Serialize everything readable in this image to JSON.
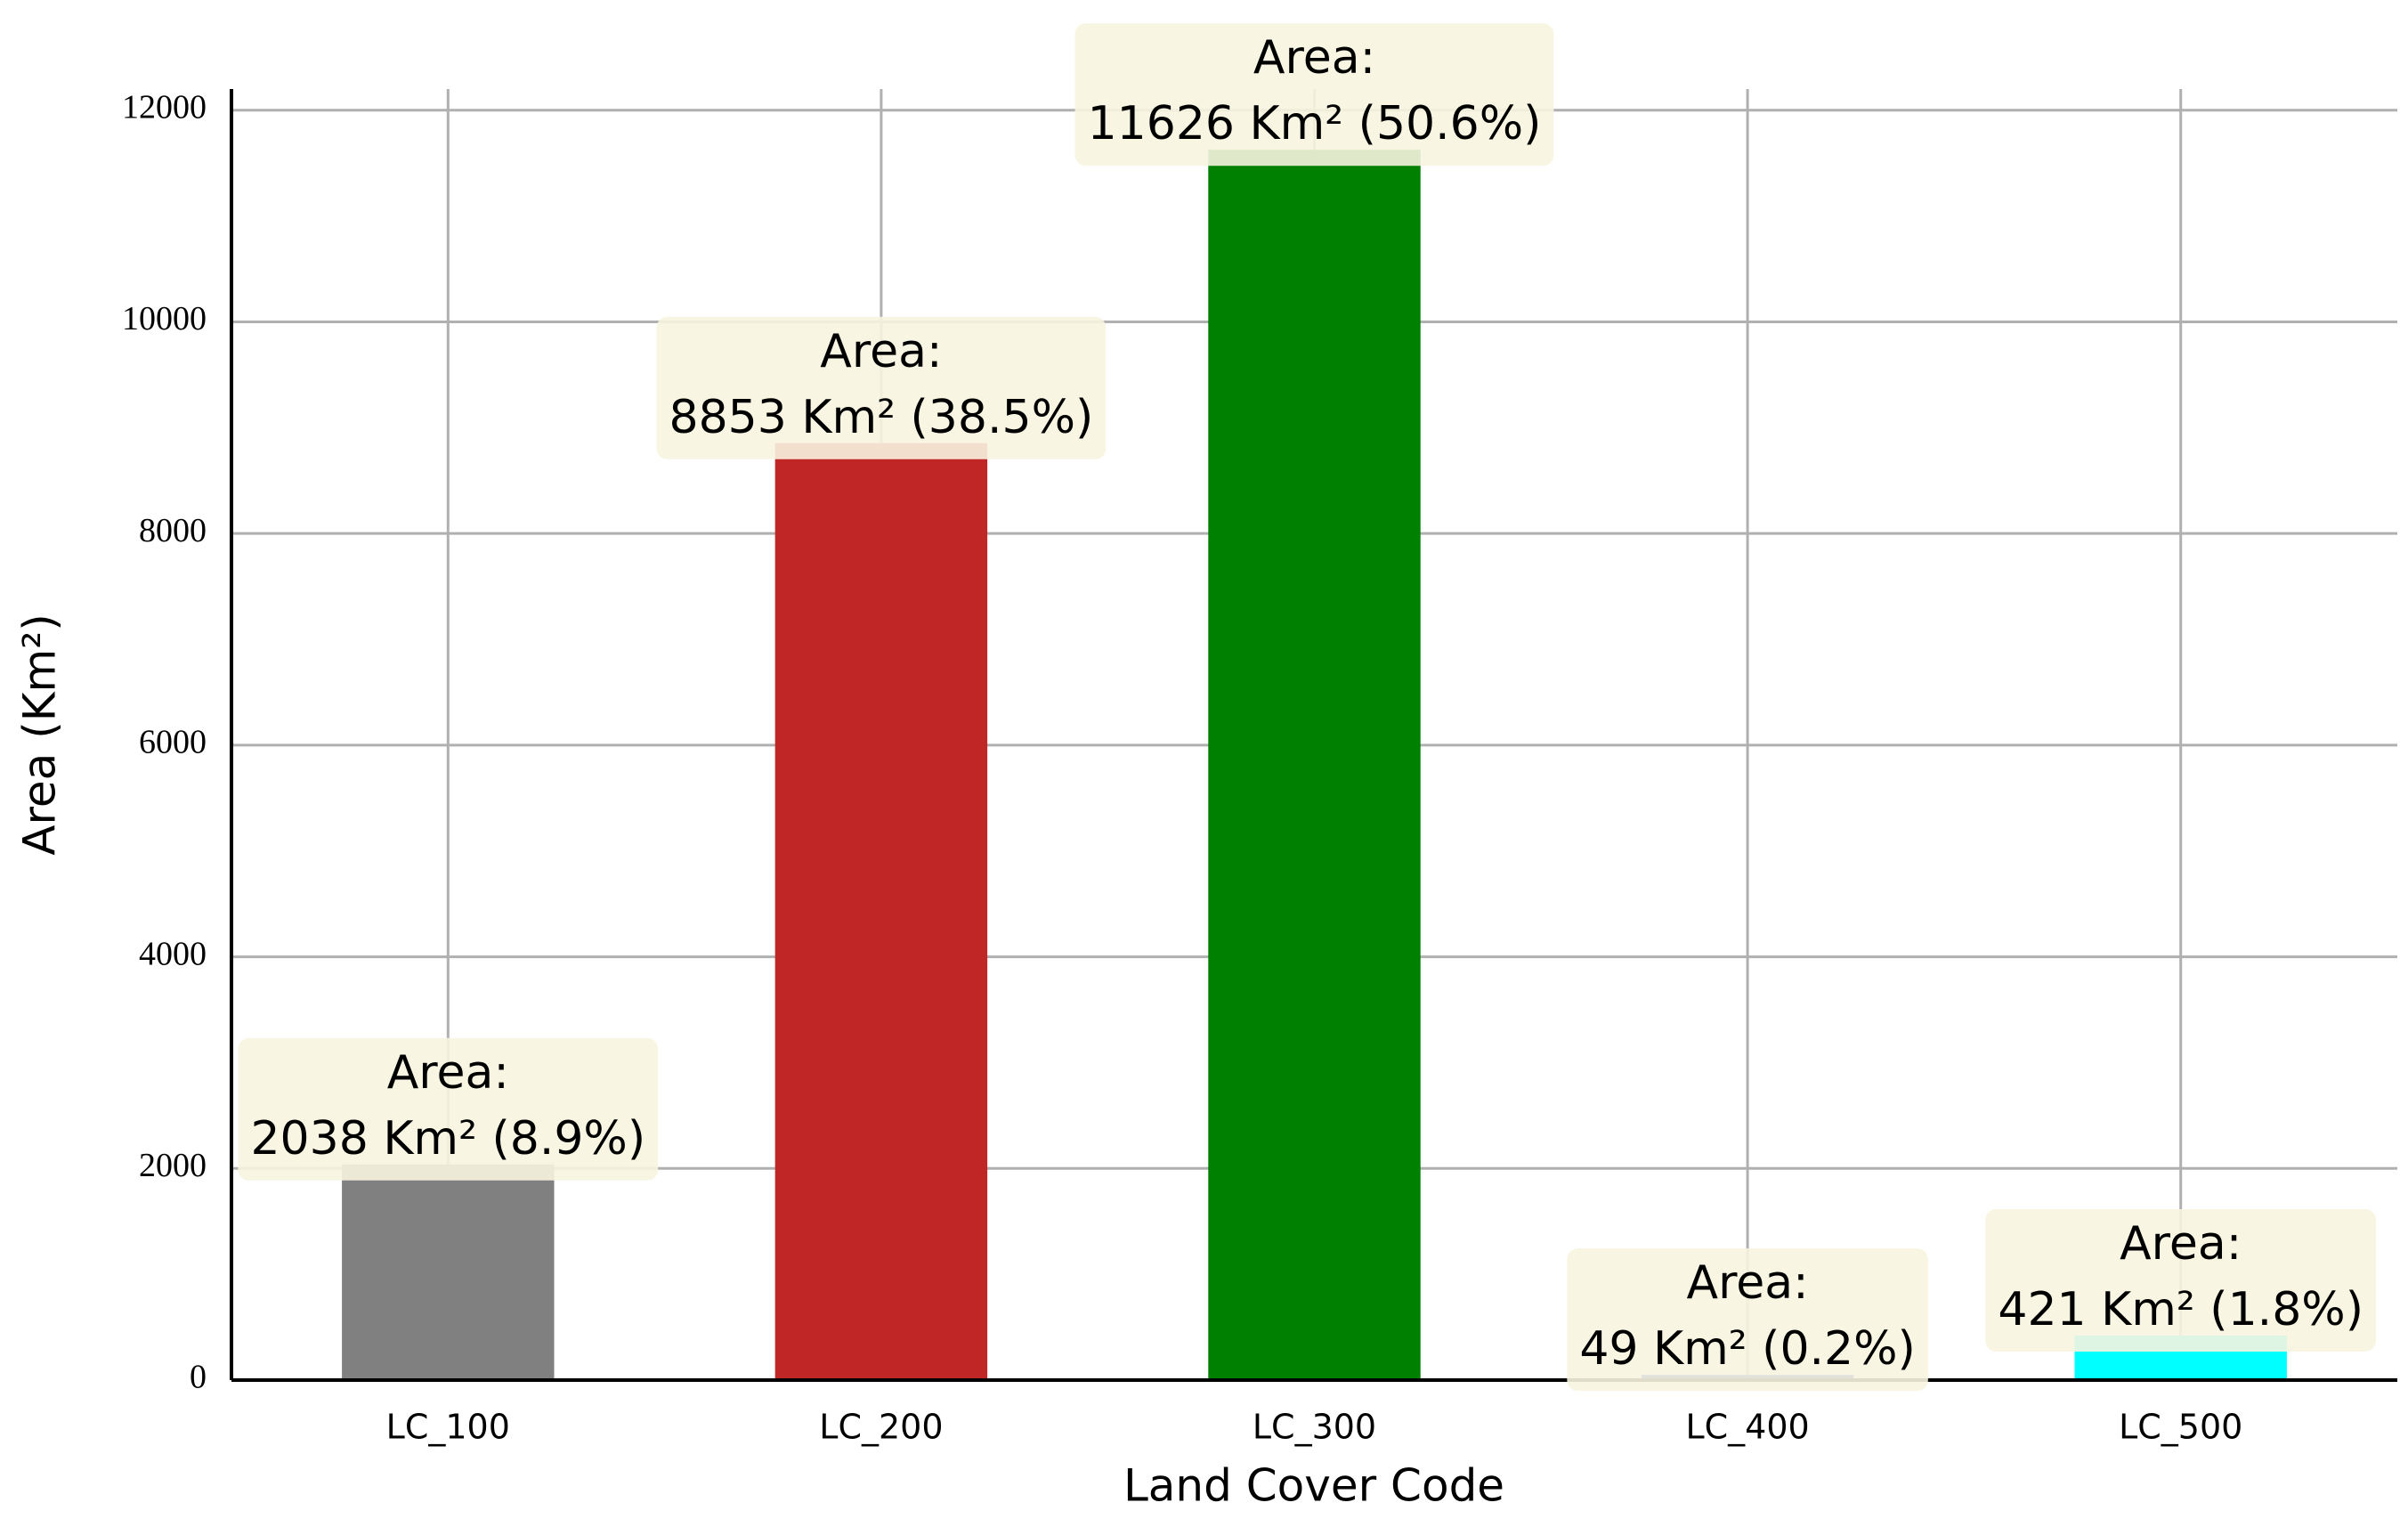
{
  "chart_data": {
    "type": "bar",
    "x_label": "Land Cover Code",
    "y_label": "Area (Km²)",
    "categories": [
      "LC_100",
      "LC_200",
      "LC_300",
      "LC_400",
      "LC_500"
    ],
    "values": [
      2038,
      8853,
      11626,
      49,
      421
    ],
    "value_label_prefix": "Area:",
    "value_labels": [
      "2038 Km² (8.9%)",
      "8853 Km² (38.5%)",
      "11626 Km² (50.6%)",
      "49 Km² (0.2%)",
      "421 Km² (1.8%)"
    ],
    "colors": [
      "#808080",
      "#c02626",
      "#008000",
      "#1f3fbf",
      "#00ffff"
    ],
    "ylim": [
      0,
      12200
    ],
    "yticks": [
      0,
      2000,
      4000,
      6000,
      8000,
      10000,
      12000
    ],
    "grid": true
  }
}
